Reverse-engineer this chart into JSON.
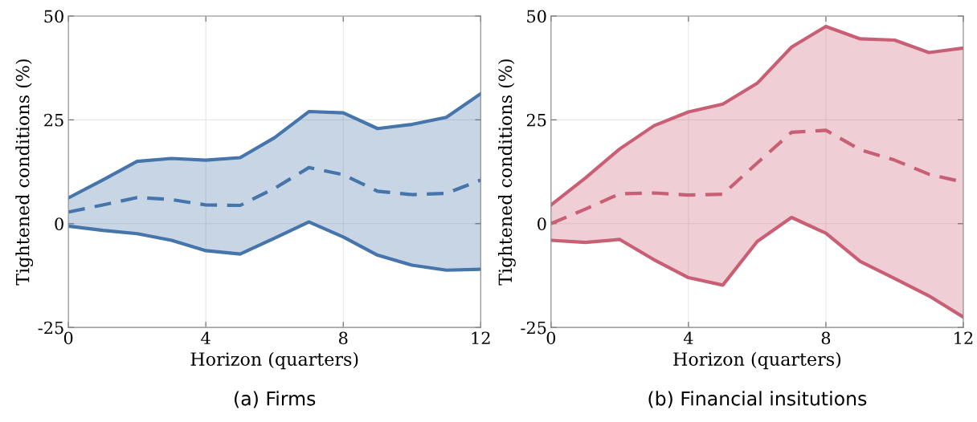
{
  "chart_data": [
    {
      "type": "line",
      "xlabel": "Horizon (quarters)",
      "ylabel": "Tightened conditions (%)",
      "annotations": [
        "(a) Firms"
      ],
      "x": [
        0,
        1,
        2,
        3,
        4,
        5,
        6,
        7,
        8,
        9,
        10,
        11,
        12
      ],
      "series": [
        {
          "color": "#4575aa",
          "line_style": "solid",
          "values": [
            6.2,
            10.5,
            15.0,
            15.7,
            15.3,
            15.9,
            20.7,
            27.0,
            26.7,
            22.9,
            23.9,
            25.6,
            31.3
          ]
        },
        {
          "color": "#4575aa",
          "line_style": "dashed",
          "values": [
            2.8,
            4.5,
            6.3,
            5.8,
            4.5,
            4.4,
            8.5,
            13.5,
            11.8,
            7.8,
            7.0,
            7.3,
            10.5
          ],
          "lower": [
            -0.6,
            -1.6,
            -2.4,
            -4.0,
            -6.5,
            -7.3,
            -3.5,
            0.4,
            -3.2,
            -7.6,
            -10.0,
            -11.2,
            -11.0
          ],
          "upper": [
            6.2,
            10.5,
            15.0,
            15.7,
            15.3,
            15.9,
            20.7,
            27.0,
            26.7,
            22.9,
            23.9,
            25.6,
            31.3
          ]
        },
        {
          "color": "#4575aa",
          "line_style": "solid",
          "values": [
            -0.6,
            -1.6,
            -2.4,
            -4.0,
            -6.5,
            -7.3,
            -3.5,
            0.4,
            -3.2,
            -7.6,
            -10.0,
            -11.2,
            -11.0
          ]
        }
      ],
      "xlim": [
        0,
        12
      ],
      "xticks": [
        0,
        4,
        8,
        12
      ],
      "ylim": [
        -25,
        50
      ],
      "yticks": [
        -25,
        0,
        25,
        50
      ],
      "grid": true
    },
    {
      "type": "line",
      "xlabel": "Horizon (quarters)",
      "ylabel": "Tightened conditions (%)",
      "annotations": [
        "(b) Financial insitutions"
      ],
      "x": [
        0,
        1,
        2,
        3,
        4,
        5,
        6,
        7,
        8,
        9,
        10,
        11,
        12
      ],
      "series": [
        {
          "color": "#c95f75",
          "line_style": "solid",
          "values": [
            4.5,
            11.0,
            18.0,
            23.6,
            26.9,
            28.8,
            33.8,
            42.5,
            47.5,
            44.5,
            44.2,
            41.2,
            42.3
          ]
        },
        {
          "color": "#c95f75",
          "line_style": "dashed",
          "values": [
            0.0,
            3.5,
            7.2,
            7.4,
            6.9,
            7.1,
            14.6,
            22.0,
            22.5,
            17.8,
            15.3,
            11.9,
            10.0
          ],
          "lower": [
            -4.0,
            -4.5,
            -3.8,
            -8.7,
            -13.0,
            -14.8,
            -4.3,
            1.5,
            -2.3,
            -9.1,
            -13.2,
            -17.4,
            -22.5
          ],
          "upper": [
            4.5,
            11.0,
            18.0,
            23.6,
            26.9,
            28.8,
            33.8,
            42.5,
            47.5,
            44.5,
            44.2,
            41.2,
            42.3
          ]
        },
        {
          "color": "#c95f75",
          "line_style": "solid",
          "values": [
            -4.0,
            -4.5,
            -3.8,
            -8.7,
            -13.0,
            -14.8,
            -4.3,
            1.5,
            -2.3,
            -9.1,
            -13.2,
            -17.4,
            -22.5
          ]
        }
      ],
      "xlim": [
        0,
        12
      ],
      "xticks": [
        0,
        4,
        8,
        12
      ],
      "ylim": [
        -25,
        50
      ],
      "yticks": [
        -25,
        0,
        25,
        50
      ],
      "grid": true
    }
  ]
}
